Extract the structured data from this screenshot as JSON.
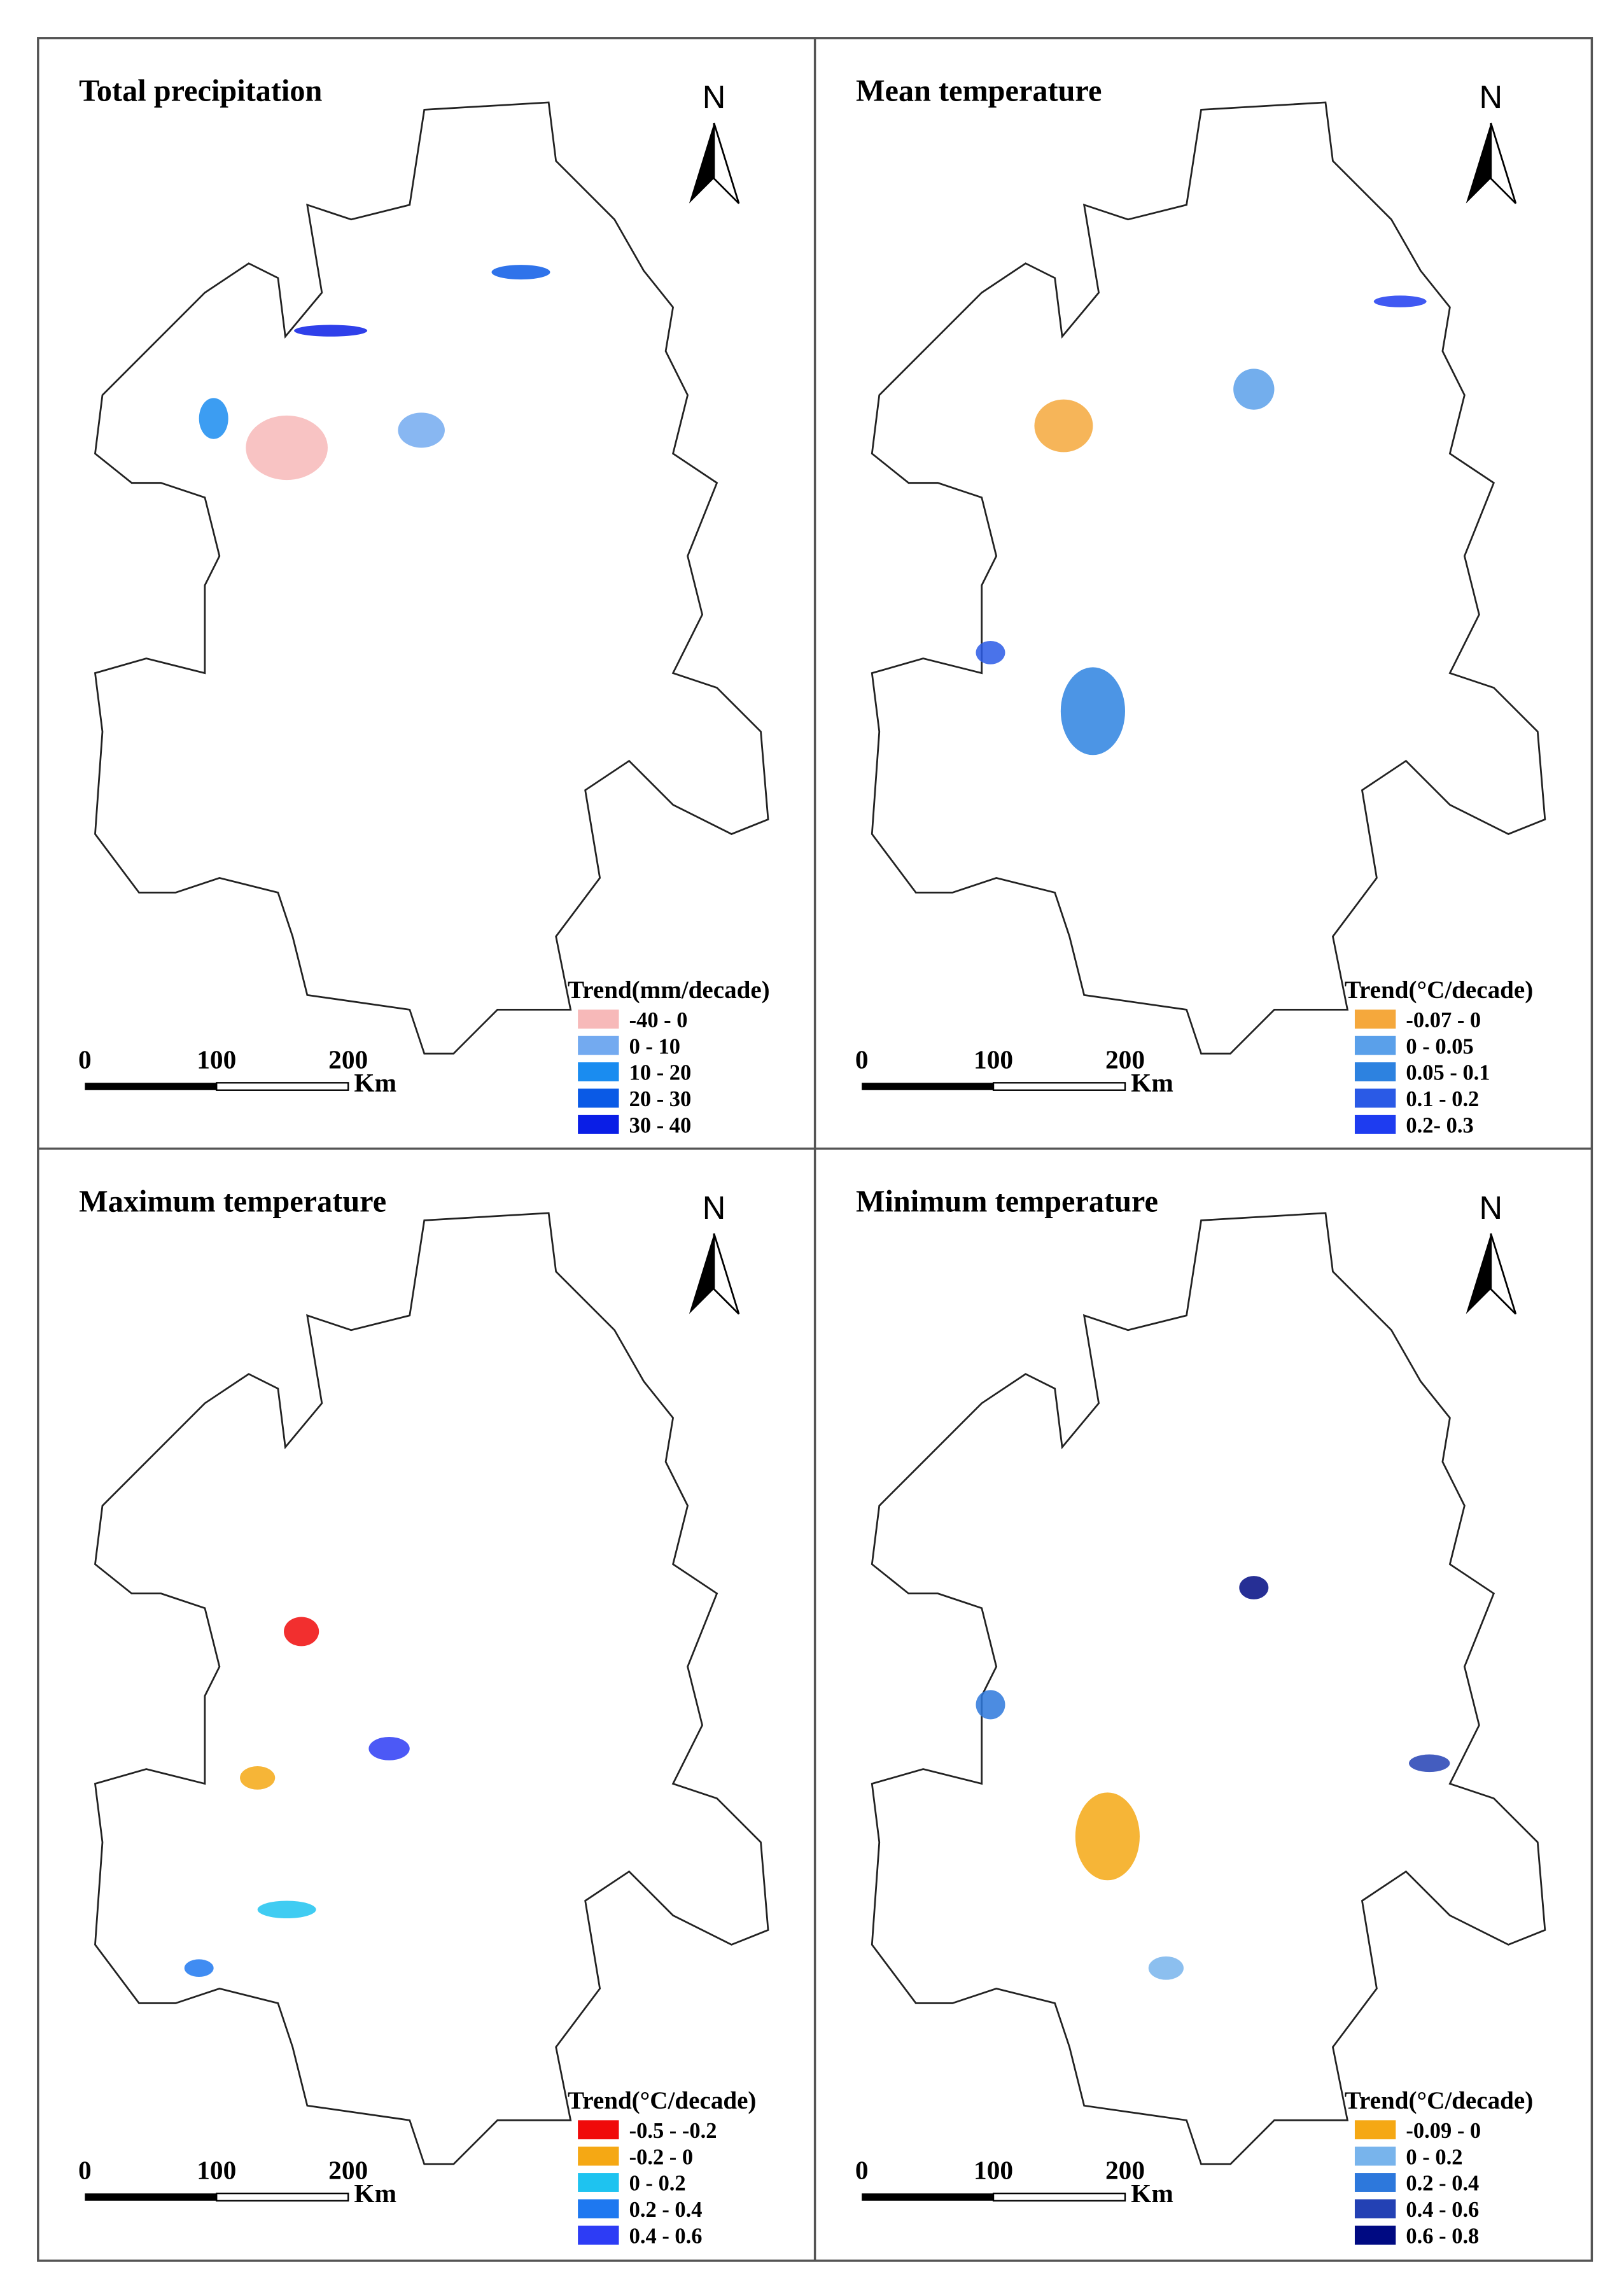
{
  "panels": [
    {
      "title": "Total precipitation",
      "north": "N",
      "legend": {
        "title": "Trend(mm/decade)",
        "items": [
          {
            "label": "-40 - 0",
            "color": "#f7b9b9"
          },
          {
            "label": "0 - 10",
            "color": "#73aaf0"
          },
          {
            "label": "10 - 20",
            "color": "#1a8cf0"
          },
          {
            "label": "20 - 30",
            "color": "#0a5ae6"
          },
          {
            "label": "30 - 40",
            "color": "#0a1ee6"
          }
        ]
      },
      "scale": {
        "ticks": [
          "0",
          "100",
          "200"
        ],
        "unit": "Km"
      }
    },
    {
      "title": "Mean temperature",
      "north": "N",
      "legend": {
        "title": "Trend(°C/decade)",
        "items": [
          {
            "label": "-0.07 - 0",
            "color": "#f5a83c"
          },
          {
            "label": "0 - 0.05",
            "color": "#5aa0ea"
          },
          {
            "label": "0.05 - 0.1",
            "color": "#2d82e0"
          },
          {
            "label": "0.1 - 0.2",
            "color": "#2a5ae6"
          },
          {
            "label": "0.2- 0.3",
            "color": "#1e3cf0"
          }
        ]
      },
      "scale": {
        "ticks": [
          "0",
          "100",
          "200"
        ],
        "unit": "Km"
      }
    },
    {
      "title": "Maximum temperature",
      "north": "N",
      "legend": {
        "title": "Trend(°C/decade)",
        "items": [
          {
            "label": "-0.5 - -0.2",
            "color": "#f00a0a"
          },
          {
            "label": "-0.2 - 0",
            "color": "#f5a814"
          },
          {
            "label": "0 - 0.2",
            "color": "#1ec3f0"
          },
          {
            "label": "0.2 - 0.4",
            "color": "#1e78f0"
          },
          {
            "label": "0.4 - 0.6",
            "color": "#2d3cf5"
          }
        ]
      },
      "scale": {
        "ticks": [
          "0",
          "100",
          "200"
        ],
        "unit": "Km"
      }
    },
    {
      "title": "Minimum temperature",
      "north": "N",
      "legend": {
        "title": "Trend(°C/decade)",
        "items": [
          {
            "label": "-0.09 - 0",
            "color": "#f5a814"
          },
          {
            "label": "0 - 0.2",
            "color": "#78b4ec"
          },
          {
            "label": "0.2 - 0.4",
            "color": "#2d78dc"
          },
          {
            "label": "0.4 - 0.6",
            "color": "#2341b4"
          },
          {
            "label": "0.6 - 0.8",
            "color": "#000a82"
          }
        ]
      },
      "scale": {
        "ticks": [
          "0",
          "100",
          "200"
        ],
        "unit": "Km"
      }
    }
  ]
}
